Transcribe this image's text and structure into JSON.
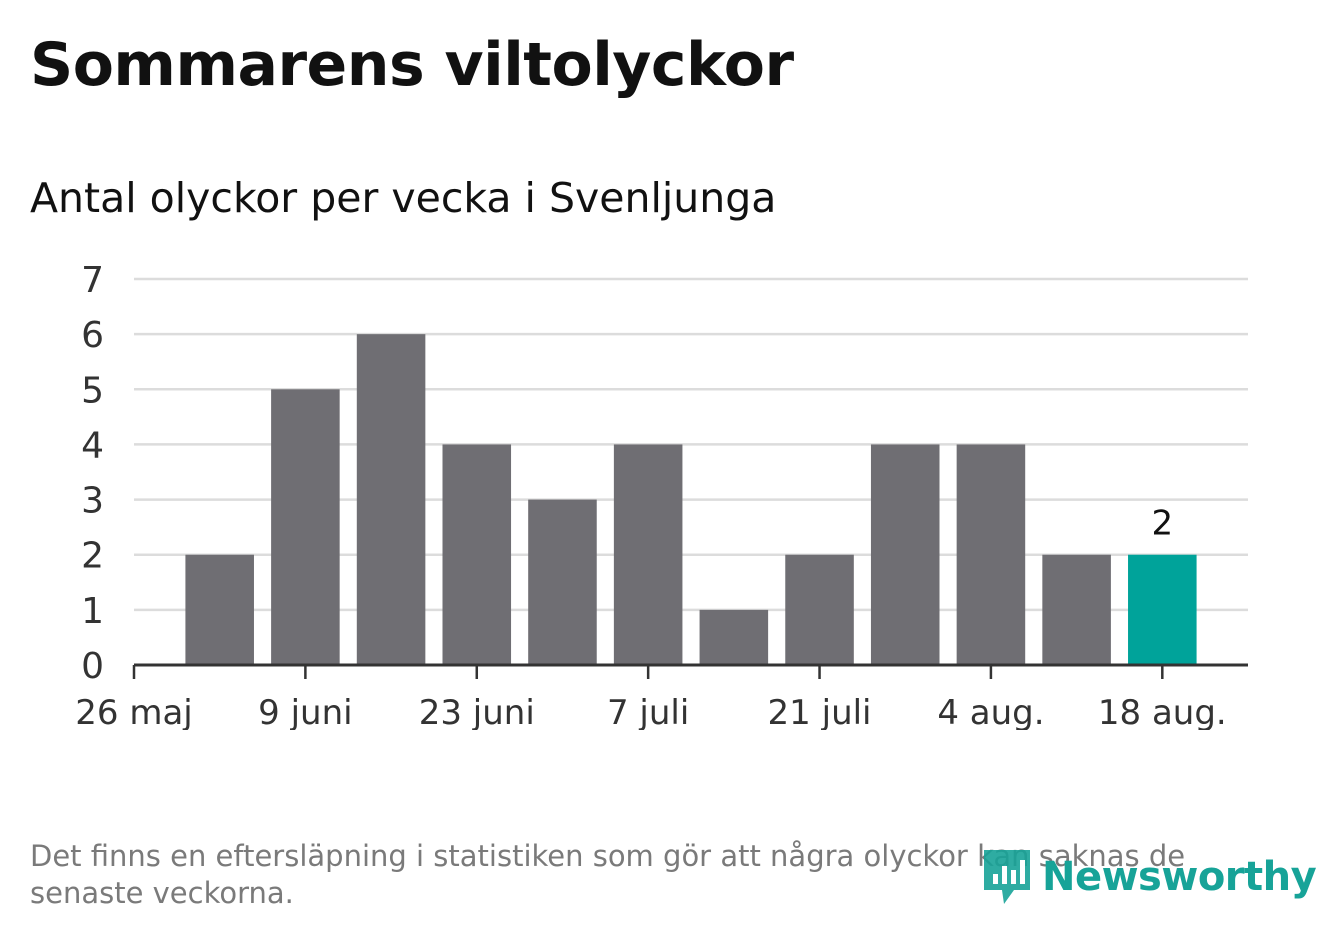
{
  "header": {
    "title": "Sommarens viltolyckor",
    "subtitle": "Antal olyckor per vecka i Svenljunga"
  },
  "chart_data": {
    "type": "bar",
    "title": "Sommarens viltolyckor",
    "subtitle": "Antal olyckor per vecka i Svenljunga",
    "xlabel": "",
    "ylabel": "",
    "ylim": [
      0,
      7
    ],
    "yticks": [
      0,
      1,
      2,
      3,
      4,
      5,
      6,
      7
    ],
    "grid": true,
    "x_tick_labels": [
      "26 maj",
      "9 juni",
      "23 juni",
      "7 juli",
      "21 juli",
      "4 aug.",
      "18 aug."
    ],
    "x": [
      "2 juni",
      "9 juni",
      "16 juni",
      "23 juni",
      "30 juni",
      "7 juli",
      "14 juli",
      "21 juli",
      "28 juli",
      "4 aug.",
      "11 aug.",
      "18 aug."
    ],
    "values": [
      2,
      5,
      6,
      4,
      3,
      4,
      1,
      2,
      4,
      4,
      2,
      2
    ],
    "highlight_index": 11,
    "highlight_label": "2",
    "colors": {
      "bar": "#6f6e73",
      "highlight": "#00a39a",
      "grid": "#dcdcdc",
      "axis": "#333333"
    }
  },
  "footer": {
    "note": "Det finns en eftersläpning i statistiken som gör att några olyckor kan saknas de senaste veckorna.",
    "brand": "Newsworthy",
    "brand_icon": "newsworthy-logo-icon",
    "brand_color": "#17a398"
  }
}
